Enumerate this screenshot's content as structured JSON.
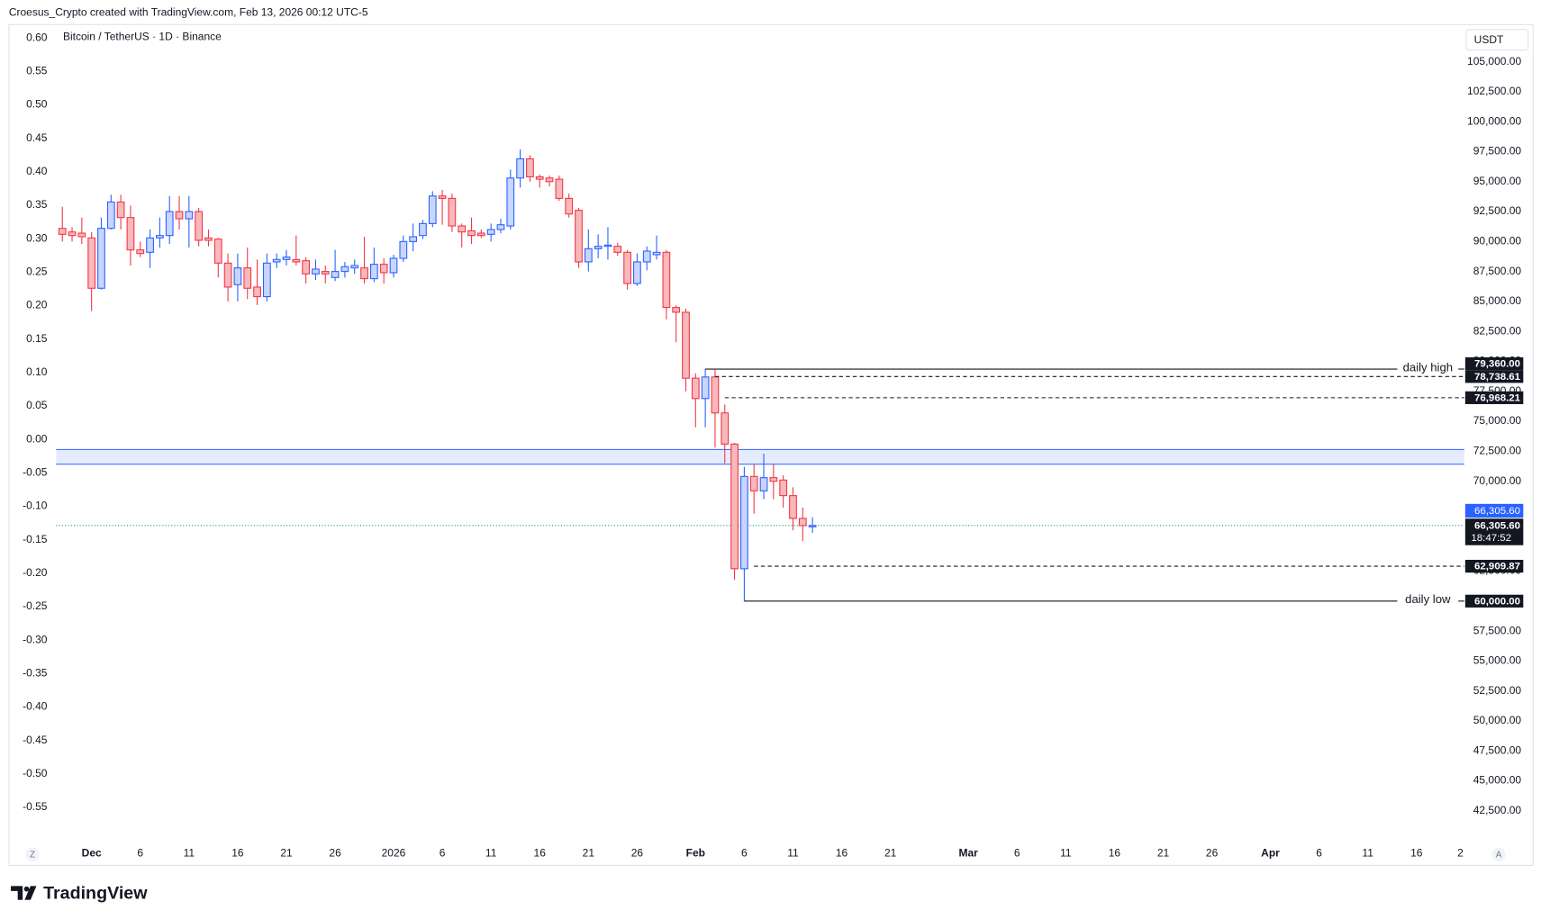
{
  "header": {
    "author_line": "Croesus_Crypto created with TradingView.com, Feb 13, 2026 00:12 UTC-5",
    "brand": "TradingView"
  },
  "chart_data": {
    "type": "candlestick",
    "title": "Bitcoin / TetherUS · 1D · Binance",
    "currency": "USDT",
    "scale_buttons": [
      "Z",
      "A"
    ],
    "up_color": "#2962ff",
    "down_color": "#f23645",
    "x": [
      -3,
      -2,
      -1,
      0,
      1,
      2,
      3,
      4,
      5,
      6,
      7,
      8,
      9,
      10,
      11,
      12,
      13,
      14,
      15,
      16,
      17,
      18,
      19,
      20,
      21,
      22,
      23,
      24,
      25,
      26,
      27,
      28,
      29,
      30,
      31,
      32,
      33,
      34,
      35,
      36,
      37,
      38,
      39,
      40,
      41,
      42,
      43,
      44,
      45,
      46,
      47,
      48,
      49,
      50,
      51,
      52,
      53,
      54,
      55,
      56,
      57,
      58,
      59,
      60,
      61,
      62,
      63,
      64,
      65,
      66,
      67,
      68,
      69,
      70,
      71,
      72,
      73,
      74
    ],
    "open": [
      91100,
      90800,
      90700,
      90300,
      86100,
      91100,
      93300,
      92000,
      89300,
      89100,
      90300,
      90500,
      92500,
      91900,
      92500,
      90300,
      90200,
      88200,
      86400,
      87800,
      86200,
      85400,
      88300,
      88500,
      88500,
      88400,
      87300,
      87500,
      87000,
      87500,
      87800,
      87800,
      86900,
      88100,
      87400,
      88600,
      90000,
      90500,
      91500,
      93800,
      93600,
      91300,
      90900,
      90700,
      90600,
      91000,
      91300,
      95300,
      96900,
      95400,
      95300,
      95200,
      93600,
      92600,
      88300,
      89400,
      89600,
      89600,
      89100,
      86500,
      88300,
      88900,
      89100,
      84500,
      84100,
      78600,
      76900,
      78700,
      75700,
      73100,
      62700,
      70400,
      69200,
      70300,
      70100,
      68800,
      66900,
      66200
    ],
    "high": [
      92900,
      91200,
      92000,
      90800,
      92000,
      93900,
      93900,
      93000,
      90000,
      91000,
      92000,
      93800,
      93800,
      93800,
      92800,
      91000,
      90300,
      89000,
      89000,
      89500,
      88500,
      89000,
      89000,
      89300,
      90500,
      88700,
      88500,
      88000,
      89300,
      88300,
      88500,
      90400,
      89500,
      88600,
      88900,
      90500,
      91500,
      91800,
      94200,
      94300,
      94000,
      91500,
      92000,
      91000,
      91500,
      91900,
      96000,
      97700,
      97200,
      95600,
      95500,
      95500,
      94000,
      92800,
      91000,
      90600,
      91200,
      89900,
      89300,
      89000,
      89600,
      90500,
      89300,
      84700,
      84400,
      79000,
      79360,
      79300,
      76400,
      73200,
      71200,
      71400,
      72300,
      71400,
      70500,
      69500,
      67800,
      67000
    ],
    "low": [
      90000,
      90000,
      89800,
      84200,
      86000,
      91000,
      91000,
      88000,
      88700,
      87800,
      89500,
      89800,
      91000,
      89500,
      89600,
      89600,
      87000,
      85000,
      85000,
      85200,
      84700,
      85000,
      87800,
      88000,
      88000,
      86500,
      86800,
      86500,
      86700,
      87000,
      87300,
      86500,
      86600,
      86500,
      87000,
      88300,
      89200,
      90200,
      91200,
      91400,
      90800,
      89500,
      89800,
      90300,
      90000,
      90700,
      91000,
      94500,
      95000,
      94500,
      94600,
      93400,
      92000,
      87800,
      87500,
      88600,
      88500,
      88800,
      86000,
      86300,
      87600,
      88500,
      83500,
      81600,
      77500,
      74500,
      74500,
      72800,
      71500,
      61800,
      60000,
      67300,
      68500,
      68500,
      67800,
      65900,
      65000,
      65700
    ],
    "close": [
      90600,
      90500,
      90400,
      86100,
      91100,
      93300,
      92000,
      89300,
      89000,
      90300,
      90500,
      92500,
      91900,
      92500,
      90100,
      90100,
      88200,
      86200,
      87800,
      86100,
      85400,
      88200,
      88500,
      88700,
      88300,
      87300,
      87700,
      87300,
      87500,
      87900,
      88000,
      86900,
      88100,
      87400,
      88600,
      90000,
      90400,
      91500,
      93800,
      93600,
      91300,
      90800,
      90500,
      90500,
      91000,
      91400,
      95300,
      96900,
      95400,
      95200,
      95000,
      93600,
      92300,
      88300,
      89400,
      89600,
      89700,
      89100,
      86500,
      88300,
      89200,
      89100,
      84500,
      84100,
      78600,
      76900,
      78700,
      75700,
      73100,
      62700,
      70400,
      69200,
      70300,
      70000,
      68800,
      66900,
      66300,
      66305.6
    ],
    "xlim": [
      -3.64,
      140.9
    ],
    "xticks": [
      {
        "value": 0,
        "label": "Dec"
      },
      {
        "value": 5,
        "label": "6"
      },
      {
        "value": 10,
        "label": "11"
      },
      {
        "value": 15,
        "label": "16"
      },
      {
        "value": 20,
        "label": "21"
      },
      {
        "value": 25,
        "label": "26"
      },
      {
        "value": 31,
        "label": "2026"
      },
      {
        "value": 36,
        "label": "6"
      },
      {
        "value": 41,
        "label": "11"
      },
      {
        "value": 46,
        "label": "16"
      },
      {
        "value": 51,
        "label": "21"
      },
      {
        "value": 56,
        "label": "26"
      },
      {
        "value": 62,
        "label": "Feb"
      },
      {
        "value": 67,
        "label": "6"
      },
      {
        "value": 72,
        "label": "11"
      },
      {
        "value": 77,
        "label": "16"
      },
      {
        "value": 82,
        "label": "21"
      },
      {
        "value": 90,
        "label": "Mar"
      },
      {
        "value": 95,
        "label": "6"
      },
      {
        "value": 100,
        "label": "11"
      },
      {
        "value": 105,
        "label": "16"
      },
      {
        "value": 110,
        "label": "21"
      },
      {
        "value": 115,
        "label": "26"
      },
      {
        "value": 121,
        "label": "Apr"
      },
      {
        "value": 126,
        "label": "6"
      },
      {
        "value": 131,
        "label": "11"
      },
      {
        "value": 136,
        "label": "16"
      },
      {
        "value": 140.5,
        "label": "2"
      }
    ],
    "ylim": [
      40000,
      108100
    ],
    "yticks": [
      {
        "value": 105000,
        "label": "105,000.00"
      },
      {
        "value": 102500,
        "label": "102,500.00"
      },
      {
        "value": 100000,
        "label": "100,000.00"
      },
      {
        "value": 97500,
        "label": "97,500.00"
      },
      {
        "value": 95000,
        "label": "95,000.00"
      },
      {
        "value": 92500,
        "label": "92,500.00"
      },
      {
        "value": 90000,
        "label": "90,000.00"
      },
      {
        "value": 87500,
        "label": "87,500.00"
      },
      {
        "value": 85000,
        "label": "85,000.00"
      },
      {
        "value": 82500,
        "label": "82,500.00"
      },
      {
        "value": 80000,
        "label": "80,000.00"
      },
      {
        "value": 77500,
        "label": "77,500.00"
      },
      {
        "value": 75000,
        "label": "75,000.00"
      },
      {
        "value": 72500,
        "label": "72,500.00"
      },
      {
        "value": 70000,
        "label": "70,000.00"
      },
      {
        "value": 67500,
        "label": "67,500.00"
      },
      {
        "value": 65000,
        "label": "65,000.00"
      },
      {
        "value": 62500,
        "label": "62,500.00"
      },
      {
        "value": 60000,
        "label": "60,000.00"
      },
      {
        "value": 57500,
        "label": "57,500.00"
      },
      {
        "value": 55000,
        "label": "55,000.00"
      },
      {
        "value": 52500,
        "label": "52,500.00"
      },
      {
        "value": 50000,
        "label": "50,000.00"
      },
      {
        "value": 47500,
        "label": "47,500.00"
      },
      {
        "value": 45000,
        "label": "45,000.00"
      },
      {
        "value": 42500,
        "label": "42,500.00"
      }
    ],
    "y2lim": [
      -0.6,
      0.62
    ],
    "y2ticks": [
      {
        "value": 0.6,
        "label": "0.60"
      },
      {
        "value": 0.55,
        "label": "0.55"
      },
      {
        "value": 0.5,
        "label": "0.50"
      },
      {
        "value": 0.45,
        "label": "0.45"
      },
      {
        "value": 0.4,
        "label": "0.40"
      },
      {
        "value": 0.35,
        "label": "0.35"
      },
      {
        "value": 0.3,
        "label": "0.30"
      },
      {
        "value": 0.25,
        "label": "0.25"
      },
      {
        "value": 0.2,
        "label": "0.20"
      },
      {
        "value": 0.15,
        "label": "0.15"
      },
      {
        "value": 0.1,
        "label": "0.10"
      },
      {
        "value": 0.05,
        "label": "0.05"
      },
      {
        "value": 0,
        "label": "0.00"
      },
      {
        "value": -0.05,
        "label": "-0.05"
      },
      {
        "value": -0.1,
        "label": "-0.10"
      },
      {
        "value": -0.15,
        "label": "-0.15"
      },
      {
        "value": -0.2,
        "label": "-0.20"
      },
      {
        "value": -0.25,
        "label": "-0.25"
      },
      {
        "value": -0.3,
        "label": "-0.30"
      },
      {
        "value": -0.35,
        "label": "-0.35"
      },
      {
        "value": -0.4,
        "label": "-0.40"
      },
      {
        "value": -0.45,
        "label": "-0.45"
      },
      {
        "value": -0.5,
        "label": "-0.50"
      },
      {
        "value": -0.55,
        "label": "-0.55"
      }
    ],
    "zone": {
      "values": [
        71420,
        72650
      ],
      "color": "#2962ff"
    },
    "levels": [
      {
        "value": 79360,
        "label": "79,360.00",
        "text": "daily high",
        "style": "solid",
        "x_start": 63
      },
      {
        "value": 78738.61,
        "label": "78,738.61",
        "style": "dashed",
        "x_start": 64
      },
      {
        "value": 76968.21,
        "label": "76,968.21",
        "style": "dashed",
        "x_start": 65
      },
      {
        "value": 62909.87,
        "label": "62,909.87",
        "style": "dashed",
        "x_start": 68
      },
      {
        "value": 60000,
        "label": "60,000.00",
        "text": "daily low",
        "style": "solid",
        "x_start": 67
      }
    ],
    "last_price": {
      "value": 66305.6,
      "label": "66,305.60",
      "countdown": "18:47:52",
      "color": "#089981"
    },
    "grid": false
  }
}
